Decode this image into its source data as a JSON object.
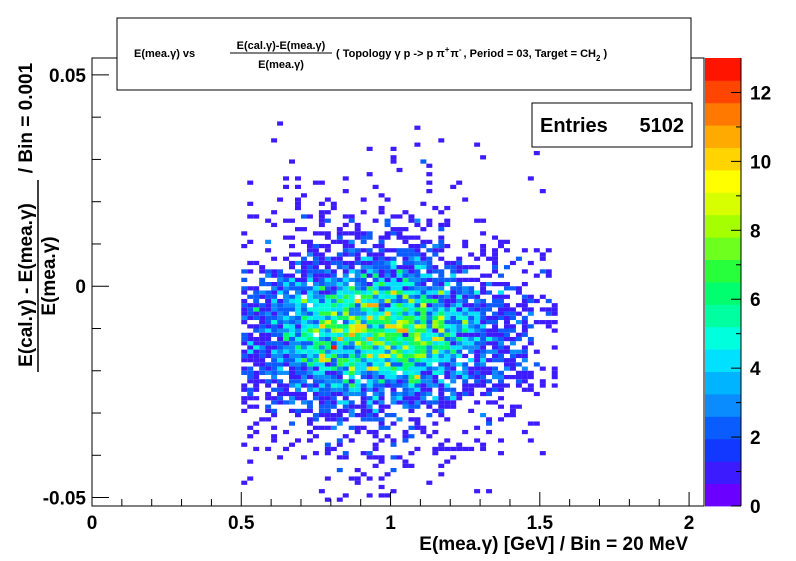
{
  "title": {
    "lhs": "E(mea.γ) vs",
    "frac_num": "E(cal.γ)-E(mea.γ)",
    "frac_den": "E(mea.γ)",
    "rest_a": "( Topology γ p -> p π",
    "rest_sup1": "+",
    "rest_b": "π",
    "rest_sup2": "-",
    "rest_c": ", Period = 03, Target = CH",
    "rest_sub": "2",
    "rest_d": " )"
  },
  "stats": {
    "label": "Entries",
    "value": "5102"
  },
  "chart_data": {
    "type": "heatmap",
    "xlabel": "E(mea.γ) [GeV] / Bin = 20 MeV",
    "ylabel_num": "E(cal.γ) - E(mea.γ)",
    "ylabel_den": "E(mea.γ)",
    "ylabel_suffix": "/ Bin = 0.001",
    "xlim": [
      0,
      2.05
    ],
    "ylim": [
      -0.052,
      0.054
    ],
    "x_bin_width": 0.02,
    "y_bin_width": 0.001,
    "x_ticks": [
      {
        "v": 0,
        "label": "0"
      },
      {
        "v": 0.5,
        "label": "0.5"
      },
      {
        "v": 1,
        "label": "1"
      },
      {
        "v": 1.5,
        "label": "1.5"
      },
      {
        "v": 2,
        "label": "2"
      }
    ],
    "y_ticks": [
      {
        "v": -0.05,
        "label": "-0.05"
      },
      {
        "v": 0,
        "label": "0"
      },
      {
        "v": 0.05,
        "label": "0.05"
      }
    ],
    "z_range": [
      0,
      13
    ],
    "z_ticks": [
      {
        "v": 0,
        "label": "0"
      },
      {
        "v": 2,
        "label": "2"
      },
      {
        "v": 4,
        "label": "4"
      },
      {
        "v": 6,
        "label": "6"
      },
      {
        "v": 8,
        "label": "8"
      },
      {
        "v": 10,
        "label": "10"
      },
      {
        "v": 12,
        "label": "12"
      }
    ],
    "palette": [
      "#6a00ff",
      "#3c1cff",
      "#1238ff",
      "#0a5cff",
      "#0a8cff",
      "#00b4ff",
      "#00e0ff",
      "#00ffdc",
      "#00ffa0",
      "#00ff6e",
      "#28ff3c",
      "#6eff1e",
      "#a6ff00",
      "#d8ff00",
      "#ffff00",
      "#ffd400",
      "#ffaa00",
      "#ff7800",
      "#ff4600",
      "#ff1400"
    ],
    "distribution": {
      "x_mean": 0.95,
      "x_sigma": 0.23,
      "x_min": 0.5,
      "x_max": 1.56,
      "y_mean": -0.011,
      "y_sigma": 0.0085,
      "y_tail_sigma": 0.017,
      "tail_fraction": 0.28,
      "y_min": -0.051,
      "y_max": 0.043
    },
    "entries": 5102
  }
}
